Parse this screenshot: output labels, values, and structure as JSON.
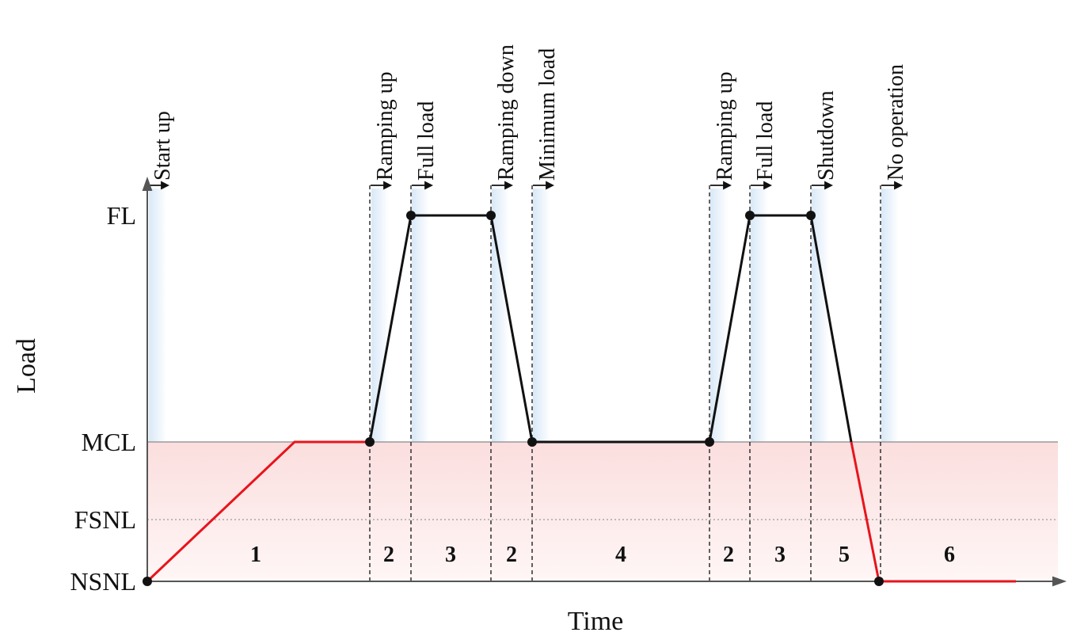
{
  "axes": {
    "y_title": "Load",
    "x_title": "Time",
    "y_levels": [
      "FL",
      "MCL",
      "FSNL",
      "NSNL"
    ]
  },
  "phases": [
    "Start up",
    "Ramping up",
    "Full load",
    "Ramping down",
    "Minimum load",
    "Ramping up",
    "Full load",
    "Shutdown",
    "No operation"
  ],
  "segments": [
    "1",
    "2",
    "3",
    "2",
    "4",
    "2",
    "3",
    "5",
    "6"
  ],
  "colors": {
    "axis": "#555555",
    "operating_line": "#111111",
    "below_mcl_line": "#e8141c",
    "below_mcl_zone": "#fbe3e3",
    "highlight_band": "#dcebf8"
  }
}
